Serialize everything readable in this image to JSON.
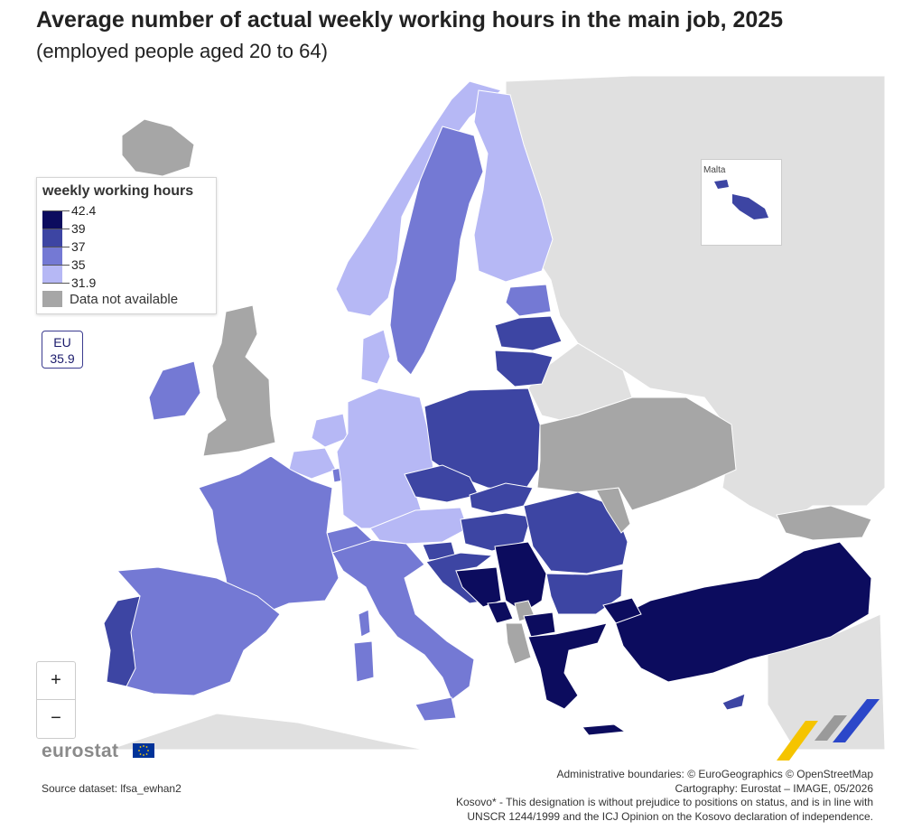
{
  "title": "Average number of actual weekly working hours in the main job, 2025",
  "subtitle": "(employed people aged 20 to 64)",
  "legend": {
    "title": "weekly working hours",
    "breaks": [
      "42.4",
      "39",
      "37",
      "35",
      "31.9"
    ],
    "na_label": "Data not available",
    "colors": {
      "class_39_42_4": "#0c0c5e",
      "class_37_39": "#3d45a3",
      "class_35_37": "#7479d4",
      "class_31_9_35": "#b6b8f5",
      "na": "#a6a6a6",
      "non_eu": "#e0e0e0"
    }
  },
  "eu_badge": {
    "label": "EU",
    "value": "35.9"
  },
  "inset": {
    "label": "Malta"
  },
  "zoom": {
    "in_label": "+",
    "out_label": "−"
  },
  "logo_text": "eurostat",
  "source": "Source dataset: lfsa_ewhan2",
  "credits": [
    "Administrative boundaries: © EuroGeographics © OpenStreetMap",
    "Cartography: Eurostat – IMAGE, 05/2026",
    "Kosovo* - This designation is without prejudice to positions on status, and is in line with",
    "UNSCR 1244/1999 and the ICJ Opinion on the Kosovo declaration of independence."
  ],
  "map_classes": {
    "Greece": "class_39_42_4",
    "Turkey": "class_39_42_4",
    "Bosnia and Herzegovina": "class_39_42_4",
    "Serbia": "class_39_42_4",
    "North Macedonia": "class_39_42_4",
    "Montenegro": "class_39_42_4",
    "Poland": "class_37_39",
    "Czechia": "class_37_39",
    "Slovakia": "class_37_39",
    "Hungary": "class_37_39",
    "Romania": "class_37_39",
    "Bulgaria": "class_37_39",
    "Croatia": "class_37_39",
    "Lithuania": "class_37_39",
    "Latvia": "class_37_39",
    "Slovenia": "class_37_39",
    "Portugal": "class_37_39",
    "Cyprus": "class_37_39",
    "Malta": "class_37_39",
    "France": "class_35_37",
    "Spain": "class_35_37",
    "Italy": "class_35_37",
    "Sweden": "class_35_37",
    "Ireland": "class_35_37",
    "Estonia": "class_35_37",
    "Switzerland": "class_35_37",
    "Luxembourg": "class_35_37",
    "Norway": "class_31_9_35",
    "Finland": "class_31_9_35",
    "Denmark": "class_31_9_35",
    "Germany": "class_31_9_35",
    "Netherlands": "class_31_9_35",
    "Belgium": "class_31_9_35",
    "Austria": "class_31_9_35",
    "Iceland": "na",
    "United Kingdom": "na",
    "Ukraine": "na",
    "Albania": "na",
    "Kosovo*": "na",
    "Moldova": "na",
    "Georgia": "na"
  }
}
